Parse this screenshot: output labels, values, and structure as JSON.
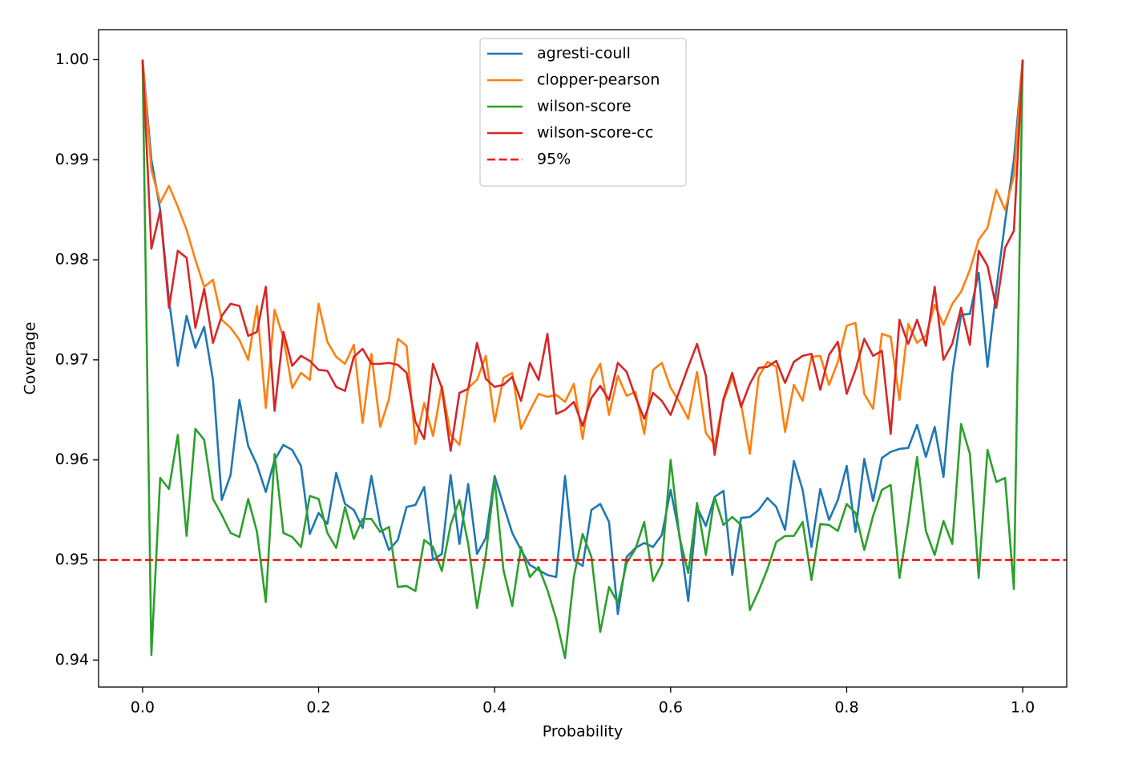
{
  "chart_data": {
    "type": "line",
    "x_label": "Probability",
    "y_label": "Coverage",
    "xlim": [
      -0.05,
      1.05
    ],
    "ylim": [
      0.9373,
      1.003
    ],
    "xticks": [
      {
        "value": 0,
        "label": "0.0"
      },
      0.2,
      0.4,
      0.6,
      0.8,
      {
        "value": 1,
        "label": "1.0"
      }
    ],
    "yticks": [
      0.94,
      0.95,
      0.96,
      0.97,
      0.98,
      0.99,
      {
        "value": 1,
        "label": "1.00"
      }
    ],
    "legend": "upper center",
    "x": [
      0,
      0.01,
      0.02,
      0.03,
      0.04,
      0.05,
      0.06,
      0.07,
      0.08,
      0.09,
      0.1,
      0.11,
      0.12,
      0.13,
      0.14,
      0.15,
      0.16,
      0.17,
      0.18,
      0.19,
      0.2,
      0.21,
      0.22,
      0.23,
      0.24,
      0.25,
      0.26,
      0.27,
      0.28,
      0.29,
      0.3,
      0.31,
      0.32,
      0.33,
      0.34,
      0.35,
      0.36,
      0.37,
      0.38,
      0.39,
      0.4,
      0.41,
      0.42,
      0.43,
      0.44,
      0.45,
      0.46,
      0.47,
      0.48,
      0.49,
      0.5,
      0.51,
      0.52,
      0.53,
      0.54,
      0.55,
      0.56,
      0.57,
      0.58,
      0.59,
      0.6,
      0.61,
      0.62,
      0.63,
      0.64,
      0.65,
      0.66,
      0.67,
      0.68,
      0.69,
      0.7,
      0.71,
      0.72,
      0.73,
      0.74,
      0.75,
      0.76,
      0.77,
      0.78,
      0.79,
      0.8,
      0.81,
      0.82,
      0.83,
      0.84,
      0.85,
      0.86,
      0.87,
      0.88,
      0.89,
      0.9,
      0.91,
      0.92,
      0.93,
      0.94,
      0.95,
      0.96,
      0.97,
      0.98,
      0.99,
      1
    ],
    "series": [
      {
        "name": "agresti-coull",
        "color": "#1f77b4",
        "values": [
          1.0,
          0.99,
          0.985,
          0.976,
          0.9694,
          0.9744,
          0.9712,
          0.9733,
          0.968,
          0.956,
          0.9585,
          0.966,
          0.9614,
          0.9595,
          0.9568,
          0.96,
          0.9615,
          0.961,
          0.9594,
          0.9526,
          0.9547,
          0.9536,
          0.9587,
          0.9556,
          0.955,
          0.9532,
          0.9584,
          0.9535,
          0.951,
          0.952,
          0.9553,
          0.9555,
          0.9573,
          0.95,
          0.9506,
          0.9585,
          0.9516,
          0.9576,
          0.9506,
          0.9522,
          0.9584,
          0.9555,
          0.9527,
          0.951,
          0.9495,
          0.949,
          0.9485,
          0.9483,
          0.9584,
          0.95,
          0.9494,
          0.955,
          0.9556,
          0.9538,
          0.9446,
          0.9503,
          0.9512,
          0.9517,
          0.9513,
          0.9525,
          0.957,
          0.9525,
          0.9459,
          0.9553,
          0.9534,
          0.9563,
          0.9569,
          0.9485,
          0.9542,
          0.9543,
          0.955,
          0.9562,
          0.9553,
          0.953,
          0.9599,
          0.957,
          0.9513,
          0.9571,
          0.954,
          0.956,
          0.9594,
          0.9528,
          0.9601,
          0.9559,
          0.9602,
          0.9608,
          0.9611,
          0.9612,
          0.9635,
          0.9603,
          0.9633,
          0.9583,
          0.9686,
          0.9745,
          0.9746,
          0.9787,
          0.9693,
          0.977,
          0.9838,
          0.99,
          1.0
        ]
      },
      {
        "name": "clopper-pearson",
        "color": "#ff7f0e",
        "values": [
          1.0,
          0.989,
          0.9857,
          0.9874,
          0.9853,
          0.983,
          0.98,
          0.9773,
          0.978,
          0.974,
          0.9732,
          0.972,
          0.97,
          0.9754,
          0.9652,
          0.975,
          0.9722,
          0.9672,
          0.9687,
          0.968,
          0.9756,
          0.9718,
          0.9703,
          0.9696,
          0.9715,
          0.9637,
          0.9706,
          0.9633,
          0.9661,
          0.9721,
          0.9714,
          0.9616,
          0.9657,
          0.9624,
          0.9674,
          0.9625,
          0.9615,
          0.9672,
          0.968,
          0.9704,
          0.9638,
          0.9682,
          0.9687,
          0.9631,
          0.9649,
          0.9666,
          0.9663,
          0.9665,
          0.9658,
          0.9676,
          0.9621,
          0.968,
          0.9696,
          0.9645,
          0.9684,
          0.9664,
          0.9668,
          0.9626,
          0.969,
          0.9697,
          0.9672,
          0.9658,
          0.9641,
          0.9688,
          0.9627,
          0.9615,
          0.9659,
          0.9683,
          0.9656,
          0.9606,
          0.9683,
          0.9698,
          0.9693,
          0.9628,
          0.9675,
          0.9659,
          0.9703,
          0.9704,
          0.9675,
          0.9698,
          0.9734,
          0.9737,
          0.9666,
          0.9651,
          0.9726,
          0.9723,
          0.966,
          0.9736,
          0.9717,
          0.9724,
          0.9755,
          0.9735,
          0.9756,
          0.9768,
          0.979,
          0.982,
          0.9832,
          0.987,
          0.985,
          0.9884,
          1.0
        ]
      },
      {
        "name": "wilson-score",
        "color": "#2ca02c",
        "values": [
          1.0,
          0.9405,
          0.9582,
          0.9571,
          0.9625,
          0.9524,
          0.9631,
          0.962,
          0.9561,
          0.9545,
          0.9527,
          0.9523,
          0.9561,
          0.9528,
          0.9458,
          0.9606,
          0.9527,
          0.9523,
          0.9513,
          0.9564,
          0.9561,
          0.9527,
          0.9512,
          0.9553,
          0.9521,
          0.9541,
          0.9541,
          0.9528,
          0.9533,
          0.9473,
          0.9474,
          0.9469,
          0.952,
          0.9513,
          0.9489,
          0.9535,
          0.956,
          0.9516,
          0.9452,
          0.9505,
          0.9581,
          0.949,
          0.9454,
          0.9513,
          0.9483,
          0.9493,
          0.947,
          0.9441,
          0.9402,
          0.9483,
          0.9526,
          0.9503,
          0.9428,
          0.9473,
          0.9457,
          0.9497,
          0.9511,
          0.9538,
          0.9479,
          0.9496,
          0.96,
          0.9523,
          0.9487,
          0.9557,
          0.9505,
          0.9563,
          0.9535,
          0.9543,
          0.9535,
          0.945,
          0.9469,
          0.9491,
          0.9518,
          0.9524,
          0.9524,
          0.9538,
          0.948,
          0.9536,
          0.9535,
          0.9529,
          0.9556,
          0.9547,
          0.951,
          0.9544,
          0.957,
          0.9575,
          0.9482,
          0.9538,
          0.9603,
          0.9529,
          0.9505,
          0.9539,
          0.9516,
          0.9636,
          0.9606,
          0.9482,
          0.961,
          0.9578,
          0.9582,
          0.9471,
          1.0
        ]
      },
      {
        "name": "wilson-score-cc",
        "color": "#d62728",
        "values": [
          1.0,
          0.9811,
          0.9849,
          0.9752,
          0.9809,
          0.9802,
          0.9732,
          0.9771,
          0.9717,
          0.9744,
          0.9756,
          0.9754,
          0.9724,
          0.9728,
          0.9773,
          0.9649,
          0.9728,
          0.9694,
          0.9704,
          0.9699,
          0.969,
          0.9689,
          0.9673,
          0.9669,
          0.9703,
          0.9711,
          0.9696,
          0.9696,
          0.9697,
          0.9695,
          0.9687,
          0.9638,
          0.9621,
          0.9696,
          0.9672,
          0.9609,
          0.9667,
          0.9671,
          0.9717,
          0.9681,
          0.9673,
          0.9675,
          0.9683,
          0.9659,
          0.9697,
          0.968,
          0.9726,
          0.9646,
          0.965,
          0.9658,
          0.9634,
          0.9662,
          0.9674,
          0.966,
          0.9697,
          0.9688,
          0.9663,
          0.9641,
          0.9667,
          0.9659,
          0.9645,
          0.9669,
          0.9693,
          0.9716,
          0.9684,
          0.9605,
          0.9661,
          0.9687,
          0.9653,
          0.9676,
          0.9692,
          0.9693,
          0.9699,
          0.9677,
          0.9698,
          0.9704,
          0.9706,
          0.967,
          0.9705,
          0.9718,
          0.9666,
          0.969,
          0.9721,
          0.9704,
          0.9709,
          0.9626,
          0.974,
          0.9716,
          0.974,
          0.9714,
          0.9773,
          0.97,
          0.9716,
          0.9752,
          0.9715,
          0.9809,
          0.9794,
          0.9752,
          0.9812,
          0.9829,
          1.0
        ]
      }
    ],
    "reference_line": {
      "name": "95%",
      "value": 0.95,
      "color": "#ff0000",
      "style": "dashed"
    }
  }
}
